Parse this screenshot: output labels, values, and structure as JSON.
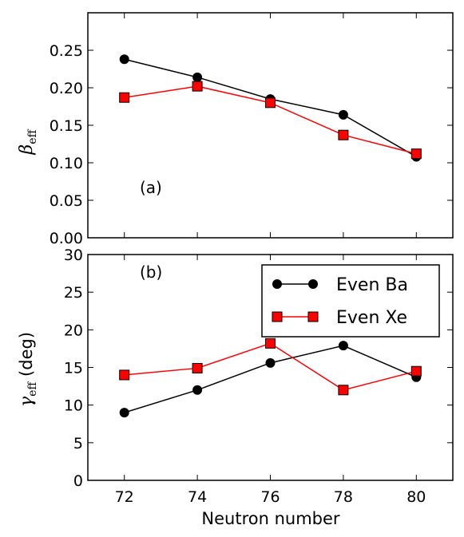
{
  "chart_data": [
    {
      "panel": "(a)",
      "type": "line",
      "x": [
        72,
        74,
        76,
        78,
        80
      ],
      "xlim": [
        71,
        81
      ],
      "ylim": [
        0.0,
        0.3
      ],
      "yticks": [
        "0.00",
        "0.05",
        "0.10",
        "0.15",
        "0.20",
        "0.25"
      ],
      "ylabel": {
        "symbol": "β",
        "sub": "eff"
      },
      "grid": false,
      "series": [
        {
          "name": "Even Ba",
          "color": "#000000",
          "marker": "circle",
          "values": [
            0.238,
            0.214,
            0.185,
            0.164,
            0.108
          ]
        },
        {
          "name": "Even Xe",
          "color": "#ff0000",
          "marker": "square",
          "values": [
            0.187,
            0.202,
            0.18,
            0.137,
            0.112
          ]
        }
      ]
    },
    {
      "panel": "(b)",
      "type": "line",
      "x": [
        72,
        74,
        76,
        78,
        80
      ],
      "xlim": [
        71,
        81
      ],
      "ylim": [
        0,
        30
      ],
      "yticks": [
        "0",
        "5",
        "10",
        "15",
        "20",
        "25",
        "30"
      ],
      "xticks": [
        "72",
        "74",
        "76",
        "78",
        "80"
      ],
      "xlabel": "Neutron number",
      "ylabel": {
        "symbol": "γ",
        "sub": "eff",
        "suffix": " (deg)"
      },
      "legend": "top-right",
      "grid": false,
      "series": [
        {
          "name": "Even Ba",
          "color": "#000000",
          "marker": "circle",
          "values": [
            9.0,
            12.0,
            15.6,
            17.9,
            13.7
          ]
        },
        {
          "name": "Even Xe",
          "color": "#ff0000",
          "marker": "square",
          "values": [
            14.0,
            14.9,
            18.2,
            12.0,
            14.5
          ]
        }
      ]
    }
  ]
}
